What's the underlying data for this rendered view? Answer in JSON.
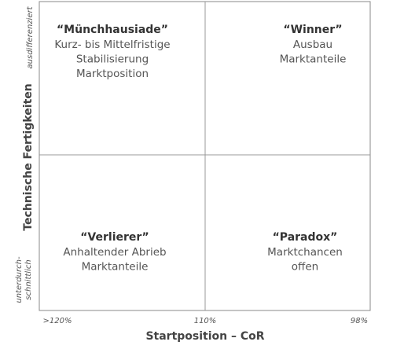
{
  "matrix": {
    "y_axis": {
      "label": "Technische Fertigkeiten",
      "high": "ausdifferenziert",
      "low": [
        "unterdurch-",
        "schnittlich"
      ]
    },
    "x_axis": {
      "label": "Startposition – CoR",
      "ticks": [
        ">120%",
        "110%",
        "98%"
      ]
    },
    "quadrants": [
      {
        "title": "“Münchhausiade”",
        "lines": [
          "Kurz- bis Mittelfristige",
          "Stabilisierung",
          "Marktposition"
        ]
      },
      {
        "title": "“Winner”",
        "lines": [
          "Ausbau",
          "Marktanteile"
        ]
      },
      {
        "title": "“Verlierer”",
        "lines": [
          "Anhaltender Abrieb",
          "Marktanteile"
        ]
      },
      {
        "title": "“Paradox”",
        "lines": [
          "Marktchancen",
          "offen"
        ]
      }
    ]
  }
}
